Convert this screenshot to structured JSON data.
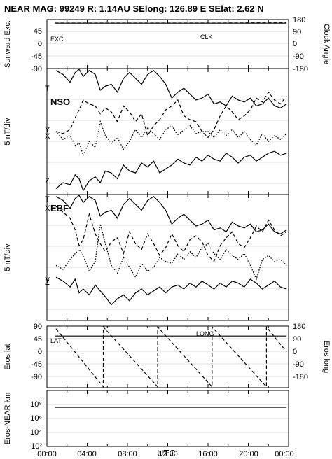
{
  "header": {
    "title": "NEAR MAG: 99249  R: 1.14AU  SElong:  126.89 E  SElat:    2.62 N"
  },
  "chart_data": [
    {
      "type": "line",
      "panel": "sunward-clock",
      "ylabel_left": "Sunward Exc.",
      "ylabel_right": "Clock Angle",
      "left_ticks": [
        "45",
        "0",
        "-45",
        "-90"
      ],
      "right_ticks": [
        "180",
        "90",
        "0",
        "-90",
        "-180"
      ],
      "ylim_left": [
        -90,
        45
      ],
      "annotations": [
        "EXC.",
        "CLK"
      ],
      "series": [
        {
          "name": "EXC.",
          "style": "solid",
          "x": [
            0.8,
            16.0,
            23.8
          ],
          "y": [
            35,
            35,
            35
          ]
        },
        {
          "name": "CLK",
          "style": "dashed",
          "x": [
            0.8,
            16.0,
            23.8
          ],
          "y": [
            38,
            38,
            37
          ]
        }
      ]
    },
    {
      "type": "line",
      "panel": "NSO",
      "ylabel": "5 nT/div",
      "annotations": [
        "T",
        "NSO",
        "Y",
        "X",
        "Z"
      ],
      "series": [
        {
          "name": "T",
          "style": "solid",
          "x": [
            0.9,
            1.6,
            2.3,
            2.8,
            3.2,
            3.6,
            4.2,
            4.8,
            5.3,
            5.8,
            6.4,
            7.0,
            7.6,
            8.2,
            8.8,
            9.4,
            10.0,
            10.6,
            11.2,
            11.8,
            12.4,
            13.0,
            13.6,
            14.2,
            14.8,
            15.4,
            16.0,
            16.6,
            17.2,
            17.8,
            18.4,
            19.0,
            19.6,
            20.2,
            20.8,
            21.4,
            22.0,
            22.6,
            23.2,
            23.8
          ],
          "y": [
            31.5,
            30.5,
            28.5,
            31.0,
            31.8,
            30.0,
            31.5,
            30.5,
            26.5,
            27.5,
            28.0,
            26.0,
            29.5,
            31.0,
            29.5,
            28.0,
            30.5,
            31.5,
            30.0,
            28.0,
            24.5,
            26.0,
            27.0,
            25.5,
            24.0,
            24.5,
            25.5,
            23.0,
            23.5,
            22.5,
            25.0,
            24.0,
            23.5,
            24.5,
            22.5,
            23.0,
            24.5,
            22.5,
            22.0,
            23.0
          ]
        },
        {
          "name": "Y",
          "style": "dashed",
          "x": [
            0.9,
            1.6,
            2.3,
            2.8,
            3.2,
            3.6,
            4.2,
            4.8,
            5.3,
            5.8,
            6.4,
            7.0,
            7.6,
            8.2,
            8.8,
            9.4,
            10.0,
            10.6,
            11.2,
            11.8,
            12.4,
            13.0,
            13.6,
            14.2,
            14.8,
            15.4,
            16.0,
            16.6,
            17.2,
            17.8,
            18.4,
            19.0,
            19.6,
            20.2,
            20.8,
            21.4,
            22.0,
            22.6,
            23.2,
            23.8
          ],
          "y": [
            16.0,
            15.5,
            16.5,
            19.5,
            21.5,
            24.0,
            23.0,
            22.5,
            20.5,
            22.0,
            21.0,
            18.5,
            22.5,
            21.0,
            18.5,
            20.5,
            15.0,
            17.5,
            19.0,
            21.5,
            22.5,
            24.0,
            20.0,
            19.0,
            18.5,
            16.0,
            14.5,
            16.5,
            20.0,
            22.5,
            21.0,
            19.0,
            20.0,
            21.5,
            24.5,
            23.5,
            26.0,
            24.0,
            23.0,
            25.0
          ]
        },
        {
          "name": "X",
          "style": "dotted",
          "x": [
            0.9,
            1.6,
            2.3,
            2.8,
            3.2,
            3.6,
            4.2,
            4.8,
            5.3,
            5.8,
            6.4,
            7.0,
            7.6,
            8.2,
            8.8,
            9.4,
            10.0,
            10.6,
            11.2,
            11.8,
            12.4,
            13.0,
            13.6,
            14.2,
            14.8,
            15.4,
            16.0,
            16.6,
            17.2,
            17.8,
            18.4,
            19.0,
            19.6,
            20.2,
            20.8,
            21.4,
            22.0,
            22.6,
            23.2,
            23.8
          ],
          "y": [
            16.0,
            14.0,
            15.0,
            12.5,
            13.0,
            10.0,
            13.5,
            12.0,
            18.5,
            15.0,
            13.0,
            14.5,
            11.5,
            13.5,
            16.5,
            14.5,
            17.0,
            15.5,
            14.0,
            16.5,
            17.5,
            15.0,
            16.5,
            17.5,
            15.5,
            16.0,
            16.0,
            14.5,
            16.5,
            15.0,
            16.5,
            14.5,
            16.0,
            14.0,
            12.5,
            15.5,
            13.5,
            15.0,
            14.0,
            15.5
          ]
        },
        {
          "name": "Z",
          "style": "solid",
          "x": [
            0.9,
            1.6,
            2.3,
            2.8,
            3.2,
            3.6,
            4.2,
            4.8,
            5.3,
            5.8,
            6.4,
            7.0,
            7.6,
            8.2,
            8.8,
            9.4,
            10.0,
            10.6,
            11.2,
            11.8,
            12.4,
            13.0,
            13.6,
            14.2,
            14.8,
            15.4,
            16.0,
            16.6,
            17.2,
            17.8,
            18.4,
            19.0,
            19.6,
            20.2,
            20.8,
            21.4,
            22.0,
            22.6,
            23.2,
            23.8
          ],
          "y": [
            1.5,
            3.0,
            2.5,
            5.0,
            4.0,
            1.0,
            3.5,
            4.5,
            3.0,
            6.0,
            5.5,
            4.0,
            7.5,
            6.0,
            5.5,
            8.0,
            7.0,
            8.5,
            5.5,
            6.5,
            7.5,
            9.0,
            8.0,
            7.5,
            9.5,
            8.5,
            10.0,
            9.0,
            8.5,
            10.5,
            9.5,
            8.0,
            9.5,
            10.0,
            8.5,
            9.5,
            10.5,
            11.0,
            10.0,
            10.5
          ]
        }
      ]
    },
    {
      "type": "line",
      "panel": "EBF",
      "ylabel": "5 nT/div",
      "annotations": [
        "T",
        "X",
        "EBF",
        "Y",
        "Z"
      ],
      "series": [
        {
          "name": "T",
          "style": "solid",
          "x": [
            0.9,
            1.6,
            2.3,
            2.8,
            3.2,
            3.6,
            4.2,
            4.8,
            5.3,
            5.8,
            6.4,
            7.0,
            7.6,
            8.2,
            8.8,
            9.4,
            10.0,
            10.6,
            11.2,
            11.8,
            12.4,
            13.0,
            13.6,
            14.2,
            14.8,
            15.4,
            16.0,
            16.6,
            17.2,
            17.8,
            18.4,
            19.0,
            19.6,
            20.2,
            20.8,
            21.4,
            22.0,
            22.6,
            23.2,
            23.8
          ],
          "y": [
            31.5,
            30.5,
            28.5,
            31.0,
            31.8,
            30.0,
            31.5,
            30.5,
            26.5,
            27.5,
            28.0,
            26.0,
            29.5,
            31.0,
            29.5,
            28.0,
            30.5,
            31.5,
            30.0,
            28.0,
            24.5,
            26.0,
            27.0,
            25.5,
            24.0,
            24.5,
            25.5,
            23.0,
            23.5,
            22.5,
            25.0,
            24.0,
            23.5,
            24.5,
            22.5,
            23.0,
            24.5,
            22.5,
            22.0,
            23.0
          ]
        },
        {
          "name": "X",
          "style": "dashed",
          "x": [
            0.9,
            1.6,
            2.3,
            2.8,
            3.2,
            3.6,
            4.2,
            4.8,
            5.3,
            5.8,
            6.4,
            7.0,
            7.6,
            8.2,
            8.8,
            9.4,
            10.0,
            10.6,
            11.2,
            11.8,
            12.4,
            13.0,
            13.6,
            14.2,
            14.8,
            15.4,
            16.0,
            16.6,
            17.2,
            17.8,
            18.4,
            19.0,
            19.6,
            20.2,
            20.8,
            21.4,
            22.0,
            22.6,
            23.2,
            23.8
          ],
          "y": [
            29.0,
            27.5,
            26.0,
            23.0,
            19.0,
            20.5,
            27.0,
            22.0,
            19.5,
            17.5,
            20.0,
            21.0,
            17.0,
            22.5,
            19.5,
            18.0,
            22.0,
            19.5,
            16.5,
            18.5,
            22.0,
            19.0,
            17.5,
            20.5,
            21.5,
            20.0,
            16.5,
            15.0,
            19.0,
            21.0,
            22.5,
            19.5,
            18.5,
            21.0,
            24.0,
            22.5,
            25.5,
            23.0,
            21.5,
            22.5
          ]
        },
        {
          "name": "Y",
          "style": "dotted",
          "x": [
            0.9,
            1.6,
            2.3,
            2.8,
            3.2,
            3.6,
            4.2,
            4.8,
            5.3,
            5.8,
            6.4,
            7.0,
            7.6,
            8.2,
            8.8,
            9.4,
            10.0,
            10.6,
            11.2,
            11.8,
            12.4,
            13.0,
            13.6,
            14.2,
            14.8,
            15.4,
            16.0,
            16.6,
            17.2,
            17.8,
            18.4,
            19.0,
            19.6,
            20.2,
            20.8,
            21.4,
            22.0,
            22.6,
            23.2,
            23.8
          ],
          "y": [
            14.0,
            13.0,
            15.5,
            17.0,
            18.0,
            16.5,
            12.5,
            15.0,
            24.5,
            19.5,
            14.0,
            12.0,
            16.0,
            13.5,
            11.0,
            14.5,
            12.5,
            13.5,
            16.0,
            15.0,
            14.5,
            17.0,
            15.5,
            17.5,
            16.0,
            18.5,
            19.5,
            17.0,
            15.5,
            18.0,
            16.5,
            15.5,
            17.0,
            14.0,
            10.5,
            15.5,
            16.5,
            15.0,
            15.5,
            14.0
          ]
        },
        {
          "name": "Z",
          "style": "solid",
          "x": [
            0.9,
            1.6,
            2.3,
            2.8,
            3.2,
            3.6,
            4.2,
            4.8,
            5.3,
            5.8,
            6.4,
            7.0,
            7.6,
            8.2,
            8.8,
            9.4,
            10.0,
            10.6,
            11.2,
            11.8,
            12.4,
            13.0,
            13.6,
            14.2,
            14.8,
            15.4,
            16.0,
            16.6,
            17.2,
            17.8,
            18.4,
            19.0,
            19.6,
            20.2,
            20.8,
            21.4,
            22.0,
            22.6,
            23.2,
            23.8
          ],
          "y": [
            11.0,
            10.0,
            8.5,
            10.5,
            7.0,
            8.0,
            6.5,
            9.0,
            7.5,
            6.0,
            4.0,
            5.5,
            6.5,
            5.0,
            7.0,
            8.0,
            6.5,
            7.5,
            8.5,
            7.0,
            8.5,
            9.0,
            8.0,
            9.5,
            8.5,
            10.0,
            9.0,
            8.0,
            9.5,
            8.5,
            10.0,
            9.5,
            8.5,
            10.5,
            9.5,
            8.0,
            9.0,
            10.0,
            8.5,
            8.0
          ]
        }
      ]
    },
    {
      "type": "line",
      "panel": "eros-lat-long",
      "ylabel_left": "Eros lat",
      "ylabel_right": "Eros long",
      "left_ticks": [
        "90",
        "45",
        "0",
        "-45",
        "-90"
      ],
      "right_ticks": [
        "180",
        "90",
        "0",
        "-90",
        "-180"
      ],
      "ylim_left": [
        -90,
        90
      ],
      "ylim_right": [
        -180,
        180
      ],
      "annotations": [
        "LAT",
        "LONG"
      ],
      "series": [
        {
          "name": "LAT",
          "style": "solid",
          "x": [
            0.8,
            23.8
          ],
          "y": [
            61,
            61
          ]
        },
        {
          "name": "LONG",
          "style": "dashed",
          "x": [
            0.9,
            5.6,
            5.6,
            11.0,
            11.0,
            16.4,
            16.4,
            21.8,
            21.8,
            23.8
          ],
          "y": [
            165,
            -175,
            175,
            -175,
            175,
            -175,
            175,
            -175,
            175,
            30
          ]
        }
      ]
    },
    {
      "type": "line",
      "panel": "eros-near-distance",
      "ylabel": "Eros-NEAR km",
      "yscale": "log",
      "ylim": [
        1,
        100000000
      ],
      "left_ticks": [
        "10⁸",
        "10⁶",
        "10⁴",
        "10²"
      ],
      "series": [
        {
          "name": "",
          "style": "solid",
          "x": [
            0.8,
            23.8
          ],
          "y": [
            400000,
            400000
          ]
        }
      ]
    }
  ],
  "x_axis": {
    "label": "UTC",
    "ticks": [
      "00:00",
      "04:00",
      "08:00",
      "12:00",
      "16:00",
      "20:00",
      "00:00"
    ]
  }
}
